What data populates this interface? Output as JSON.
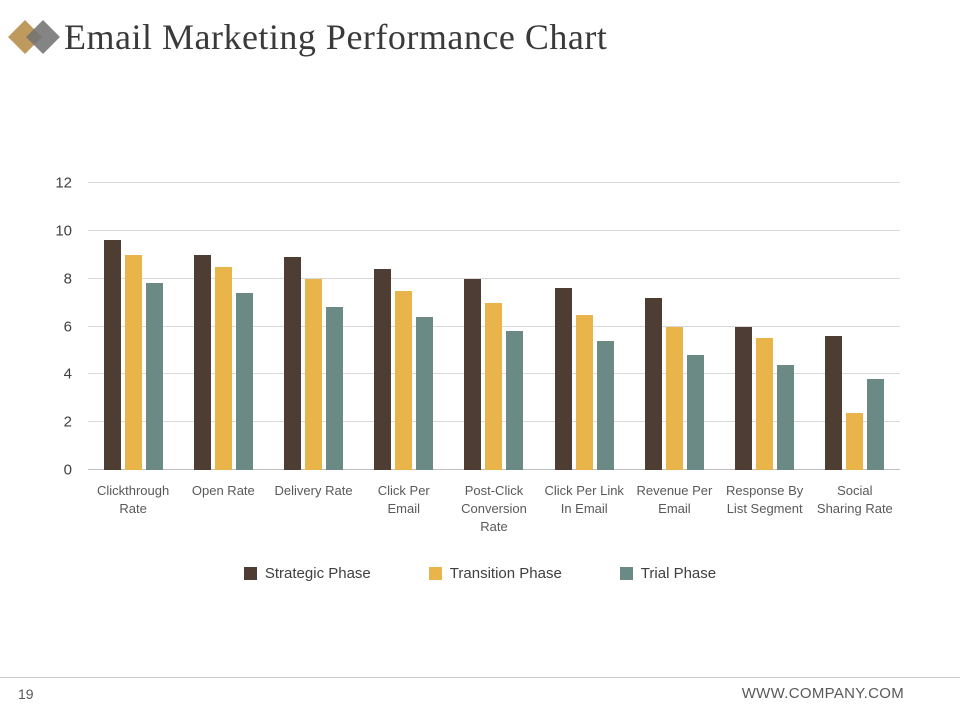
{
  "slide": {
    "title": "Email Marketing Performance Chart",
    "page_number": "19",
    "footer_url": "WWW.COMPANY.COM"
  },
  "chart_data": {
    "type": "bar",
    "title": "Email Marketing Performance Chart",
    "categories": [
      "Clickthrough Rate",
      "Open Rate",
      "Delivery Rate",
      "Click Per Email",
      "Post-Click Conversion Rate",
      "Click Per Link In Email",
      "Revenue Per Email",
      "Response By List Segment",
      "Social Sharing Rate"
    ],
    "series": [
      {
        "name": "Strategic Phase",
        "color": "#4E3D32",
        "values": [
          9.6,
          9.0,
          8.9,
          8.4,
          8.0,
          7.6,
          7.2,
          6.0,
          5.6
        ]
      },
      {
        "name": "Transition Phase",
        "color": "#E9B54B",
        "values": [
          9.0,
          8.5,
          8.0,
          7.5,
          7.0,
          6.5,
          6.0,
          5.5,
          2.4
        ]
      },
      {
        "name": "Trial Phase",
        "color": "#6B8A85",
        "values": [
          7.8,
          7.4,
          6.8,
          6.4,
          5.8,
          5.4,
          4.8,
          4.4,
          3.8
        ]
      }
    ],
    "ylim": [
      0,
      12
    ],
    "yticks": [
      0,
      2,
      4,
      6,
      8,
      10,
      12
    ],
    "grid": true,
    "legend_position": "bottom",
    "colors": {
      "grid": "#D9D9D9",
      "axis_text": "#404040",
      "category_text": "#595959",
      "title_text": "#3A3A3A"
    }
  }
}
